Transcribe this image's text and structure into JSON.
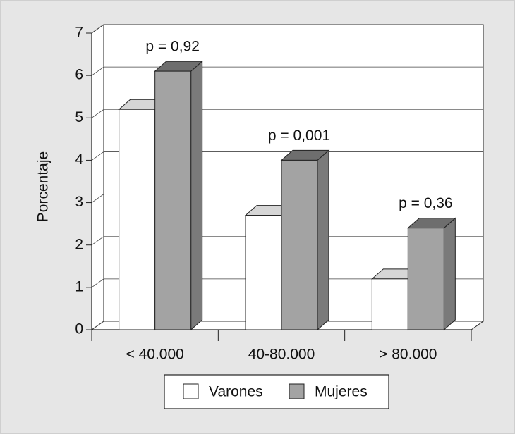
{
  "chart_data": {
    "type": "bar3d",
    "y_label": "Porcentaje",
    "categories": [
      "< 40.000",
      "40-80.000",
      "> 80.000"
    ],
    "series": [
      {
        "name": "Varones",
        "color": "#ffffff",
        "values": [
          5.2,
          2.7,
          1.2
        ]
      },
      {
        "name": "Mujeres",
        "color": "#a3a3a3",
        "values": [
          6.1,
          4.0,
          2.4
        ]
      }
    ],
    "annotations": [
      "p = 0,92",
      "p = 0,001",
      "p = 0,36"
    ],
    "ylim": [
      0,
      7
    ],
    "yticks": [
      0,
      1,
      2,
      3,
      4,
      5,
      6,
      7
    ],
    "grid": true
  }
}
